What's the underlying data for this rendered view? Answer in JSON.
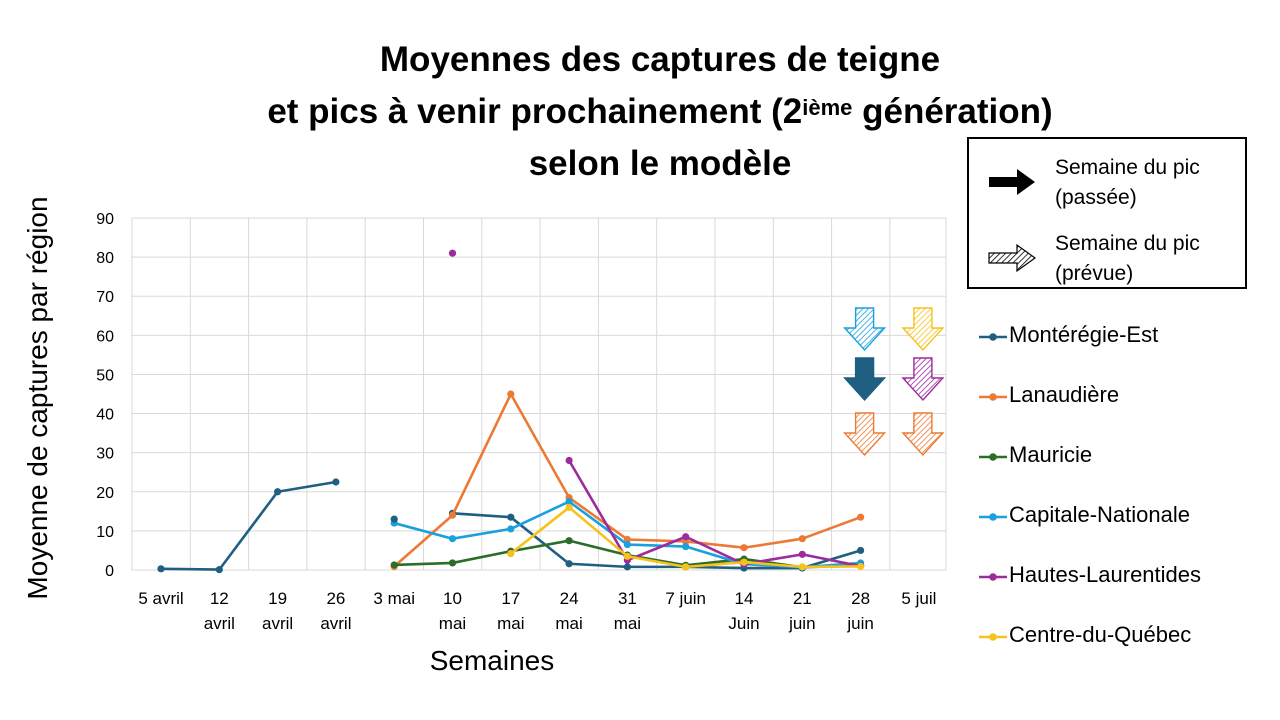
{
  "title": {
    "line1": "Moyennes des captures de teigne",
    "line2_pre": "et pics à venir prochainement (2",
    "line2_sup": "ième",
    "line2_post": " génération)",
    "line3": "selon le modèle"
  },
  "peak_legend": {
    "past": {
      "line1": "Semaine du pic",
      "line2": "(passée)"
    },
    "forecast": {
      "line1": "Semaine du pic",
      "line2": "(prévue)"
    }
  },
  "colors": {
    "Montérégie-Est": "#1f5f82",
    "Lanaudière": "#ec7a34",
    "Mauricie": "#2a6e2a",
    "Capitale-Nationale": "#1aa1dc",
    "Hautes-Laurentides": "#9c2c9c",
    "Centre-du-Québec": "#f7c21a",
    "grid": "#d9d9d9"
  },
  "chart_data": {
    "type": "line",
    "title": "Moyennes des captures de teigne et pics à venir prochainement (2ième génération) selon le modèle",
    "xlabel": "Semaines",
    "ylabel": "Moyenne de captures par région",
    "ylim": [
      0,
      90
    ],
    "yticks": [
      0,
      10,
      20,
      30,
      40,
      50,
      60,
      70,
      80,
      90
    ],
    "grid": true,
    "legend_position": "right",
    "categories": [
      [
        "5 avril"
      ],
      [
        "12",
        "avril"
      ],
      [
        "19",
        "avril"
      ],
      [
        "26",
        "avril"
      ],
      [
        "3 mai"
      ],
      [
        "10",
        "mai"
      ],
      [
        "17",
        "mai"
      ],
      [
        "24",
        "mai"
      ],
      [
        "31",
        "mai"
      ],
      [
        "7 juin"
      ],
      [
        "14",
        "Juin"
      ],
      [
        "21",
        "juin"
      ],
      [
        "28",
        "juin"
      ],
      [
        "5 juil"
      ]
    ],
    "series": [
      {
        "name": "Montérégie-Est",
        "values": [
          0.3,
          0.1,
          20,
          22.5,
          null,
          14.5,
          13.5,
          1.6,
          0.8,
          0.8,
          0.5,
          0.5,
          5,
          null
        ]
      },
      {
        "name": "Lanaudière",
        "values": [
          null,
          null,
          null,
          null,
          0.9,
          14,
          45,
          18.5,
          7.8,
          7.3,
          5.7,
          8,
          13.5,
          null
        ]
      },
      {
        "name": "Mauricie",
        "values": [
          null,
          null,
          null,
          null,
          1.3,
          1.8,
          4.8,
          7.5,
          3.8,
          1.2,
          2.8,
          0.7,
          1.1,
          null
        ]
      },
      {
        "name": "Capitale-Nationale",
        "values": [
          null,
          null,
          null,
          null,
          12,
          8,
          10.5,
          17.5,
          6.5,
          6,
          1.5,
          0.7,
          1.8,
          null
        ]
      },
      {
        "name": "Hautes-Laurentides",
        "values": [
          null,
          null,
          null,
          null,
          null,
          81,
          null,
          28,
          2.5,
          8.5,
          1.5,
          4,
          1,
          null
        ]
      },
      {
        "name": "Centre-du-Québec",
        "values": [
          null,
          null,
          null,
          null,
          null,
          null,
          4.2,
          16,
          3.5,
          0.8,
          2,
          0.8,
          0.9,
          null
        ]
      }
    ],
    "extra_points": [
      {
        "series": "Montérégie-Est",
        "x_index": 4,
        "value": 13
      }
    ],
    "peak_markers": [
      {
        "series": "Capitale-Nationale",
        "week": "28 juin",
        "kind": "forecast"
      },
      {
        "series": "Montérégie-Est",
        "week": "28 juin",
        "kind": "past"
      },
      {
        "series": "Lanaudière",
        "week": "28 juin",
        "kind": "forecast"
      },
      {
        "series": "Centre-du-Québec",
        "week": "5 juil",
        "kind": "forecast"
      },
      {
        "series": "Hautes-Laurentides",
        "week": "5 juil",
        "kind": "forecast"
      },
      {
        "series": "Lanaudière",
        "week": "5 juil",
        "kind": "forecast"
      }
    ]
  }
}
